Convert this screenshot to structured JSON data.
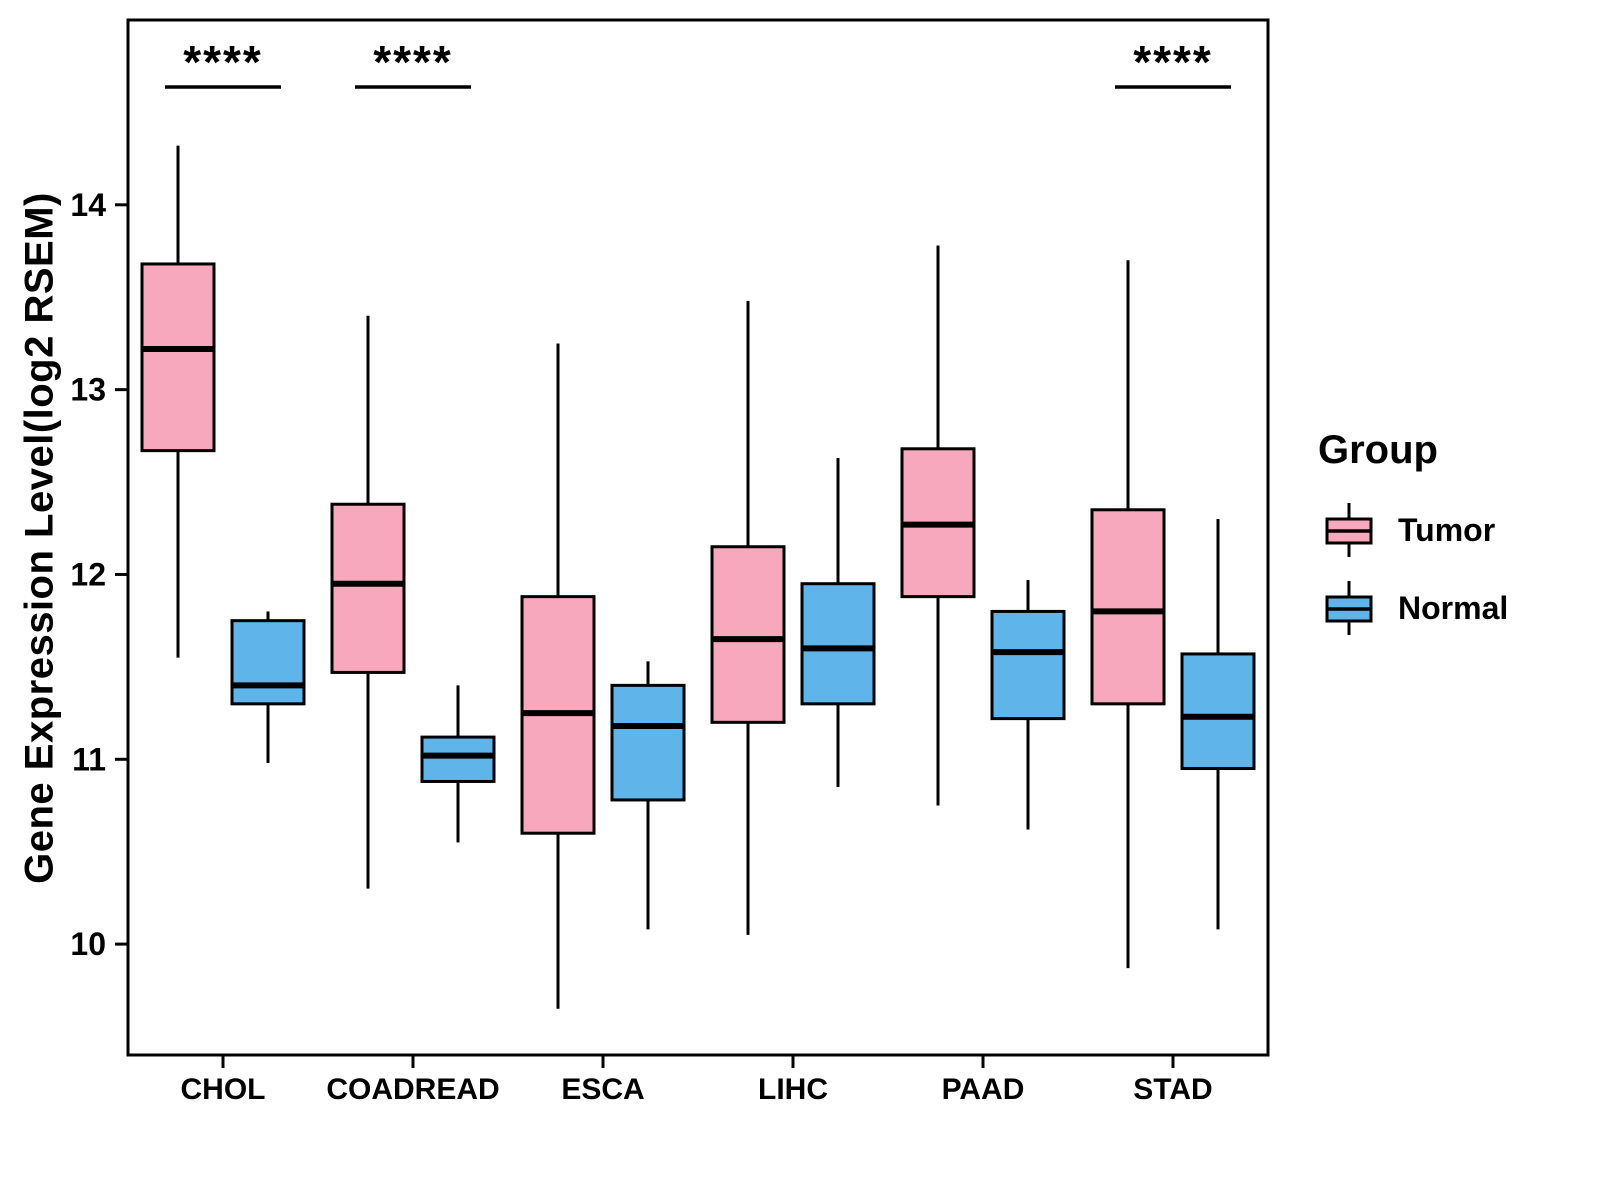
{
  "chart_data": {
    "type": "boxplot",
    "title": "",
    "xlabel": "",
    "ylabel": "Gene Expression Level(log2 RSEM)",
    "categories": [
      "CHOL",
      "COADREAD",
      "ESCA",
      "LIHC",
      "PAAD",
      "STAD"
    ],
    "ylim": [
      9.4,
      15.0
    ],
    "yticks": [
      10,
      11,
      12,
      13,
      14
    ],
    "grid": false,
    "legend": {
      "title": "Group",
      "position": "right",
      "entries": [
        "Tumor",
        "Normal"
      ]
    },
    "significance": [
      {
        "category": "CHOL",
        "label": "****"
      },
      {
        "category": "COADREAD",
        "label": "****"
      },
      {
        "category": "STAD",
        "label": "****"
      }
    ],
    "series": [
      {
        "name": "Tumor",
        "color": "#F7A8BC",
        "boxes": [
          {
            "category": "CHOL",
            "low": 11.55,
            "q1": 12.67,
            "median": 13.22,
            "q3": 13.68,
            "high": 14.32
          },
          {
            "category": "COADREAD",
            "low": 10.3,
            "q1": 11.47,
            "median": 11.95,
            "q3": 12.38,
            "high": 13.4
          },
          {
            "category": "ESCA",
            "low": 9.65,
            "q1": 10.6,
            "median": 11.25,
            "q3": 11.88,
            "high": 13.25
          },
          {
            "category": "LIHC",
            "low": 10.05,
            "q1": 11.2,
            "median": 11.65,
            "q3": 12.15,
            "high": 13.48
          },
          {
            "category": "PAAD",
            "low": 10.75,
            "q1": 11.88,
            "median": 12.27,
            "q3": 12.68,
            "high": 13.78
          },
          {
            "category": "STAD",
            "low": 9.87,
            "q1": 11.3,
            "median": 11.8,
            "q3": 12.35,
            "high": 13.7
          }
        ]
      },
      {
        "name": "Normal",
        "color": "#5FB4EA",
        "boxes": [
          {
            "category": "CHOL",
            "low": 10.98,
            "q1": 11.3,
            "median": 11.4,
            "q3": 11.75,
            "high": 11.8
          },
          {
            "category": "COADREAD",
            "low": 10.55,
            "q1": 10.88,
            "median": 11.02,
            "q3": 11.12,
            "high": 11.4
          },
          {
            "category": "ESCA",
            "low": 10.08,
            "q1": 10.78,
            "median": 11.18,
            "q3": 11.4,
            "high": 11.53
          },
          {
            "category": "LIHC",
            "low": 10.85,
            "q1": 11.3,
            "median": 11.6,
            "q3": 11.95,
            "high": 12.63
          },
          {
            "category": "PAAD",
            "low": 10.62,
            "q1": 11.22,
            "median": 11.58,
            "q3": 11.8,
            "high": 11.97
          },
          {
            "category": "STAD",
            "low": 10.08,
            "q1": 10.95,
            "median": 11.23,
            "q3": 11.57,
            "high": 12.3
          }
        ]
      }
    ]
  }
}
